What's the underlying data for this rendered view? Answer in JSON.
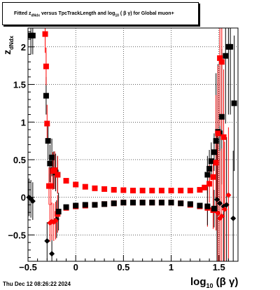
{
  "title": {
    "prefix": "Fitted  z",
    "sub1": "dNdx",
    "middle": " versus TpcTrackLength and log",
    "sub2": "10",
    "suffix": " ( β γ) for Global muon+"
  },
  "footer_date": "Thu Dec 12 08:26:22 2024",
  "xlabel": {
    "base": "log",
    "sub": "10",
    "tail": " (β γ)"
  },
  "ylabel": {
    "base": "z",
    "sub": "dNdx"
  },
  "chart_data": {
    "type": "scatter",
    "xlim": [
      -0.5,
      1.7
    ],
    "ylim": [
      -0.85,
      2.25
    ],
    "grid": true,
    "x_ticks": [
      {
        "v": -0.5,
        "label": "−0.5"
      },
      {
        "v": 0,
        "label": "0"
      },
      {
        "v": 0.5,
        "label": "0.5"
      },
      {
        "v": 1,
        "label": "1"
      },
      {
        "v": 1.5,
        "label": "1.5"
      }
    ],
    "y_ticks": [
      {
        "v": -0.5,
        "label": "−0.5"
      },
      {
        "v": 0,
        "label": "0"
      },
      {
        "v": 0.5,
        "label": "0.5"
      },
      {
        "v": 1,
        "label": "1"
      },
      {
        "v": 1.5,
        "label": "1.5"
      },
      {
        "v": 2,
        "label": "2"
      }
    ],
    "series": [
      {
        "color": "#000000",
        "marker": "square",
        "points": [
          [
            -0.47,
            2.15
          ],
          [
            -0.45,
            2.15
          ],
          [
            -0.31,
            1.35
          ],
          [
            -0.29,
            0.75
          ],
          [
            -0.27,
            0.45
          ],
          [
            -0.25,
            0.53
          ],
          [
            -0.23,
            0.36
          ],
          [
            -0.21,
            0.33
          ],
          [
            -0.19,
            0.3
          ],
          [
            1.38,
            0.3
          ],
          [
            1.4,
            0.38
          ],
          [
            1.42,
            0.48
          ],
          [
            1.45,
            0.6
          ],
          [
            1.47,
            0.75
          ],
          [
            1.49,
            0.87
          ],
          [
            1.51,
            0.85
          ],
          [
            1.53,
            1.07
          ],
          [
            1.57,
            1.88
          ],
          [
            1.6,
            2.0
          ],
          [
            1.62,
            2.0
          ],
          [
            1.66,
            1.25
          ]
        ]
      },
      {
        "color": "#000000",
        "marker": "diamond",
        "points": [
          [
            -0.49,
            0.0
          ],
          [
            -0.47,
            -0.02
          ],
          [
            -0.45,
            -0.05
          ],
          [
            -0.3,
            -0.58
          ],
          [
            -0.25,
            -0.75
          ],
          [
            -0.2,
            -0.29
          ],
          [
            1.48,
            -0.03
          ],
          [
            1.51,
            -0.08
          ],
          [
            1.55,
            -0.12
          ],
          [
            1.58,
            -0.1
          ],
          [
            1.65,
            -0.28
          ]
        ]
      },
      {
        "color": "#ff0000",
        "marker": "square",
        "points": [
          [
            -0.32,
            2.17
          ],
          [
            -0.31,
            1.74
          ],
          [
            -0.3,
            0.98
          ],
          [
            -0.28,
            0.15
          ],
          [
            -0.26,
            0.15
          ],
          [
            -0.24,
            0.35
          ],
          [
            -0.22,
            0.36
          ],
          [
            1.47,
            0.46
          ],
          [
            1.49,
            0.85
          ],
          [
            1.51,
            1.85
          ],
          [
            1.53,
            1.8
          ],
          [
            1.55,
            0.8
          ]
        ]
      },
      {
        "color": "#ff0000",
        "marker": "diamond",
        "points": [
          [
            -0.27,
            -0.34
          ],
          [
            -0.25,
            -0.32
          ],
          [
            -0.23,
            -0.33
          ],
          [
            -0.21,
            -0.31
          ],
          [
            1.49,
            -0.21
          ],
          [
            1.51,
            -0.28
          ],
          [
            1.53,
            -0.25
          ],
          [
            1.56,
            -0.16
          ],
          [
            1.6,
            0.03
          ]
        ]
      },
      {
        "color": "#ff0000",
        "marker": "square",
        "points": [
          [
            -0.19,
            0.3
          ],
          [
            -0.1,
            0.22
          ],
          [
            0.0,
            0.17
          ],
          [
            0.1,
            0.14
          ],
          [
            0.2,
            0.12
          ],
          [
            0.3,
            0.11
          ],
          [
            0.4,
            0.1
          ],
          [
            0.5,
            0.095
          ],
          [
            0.6,
            0.09
          ],
          [
            0.7,
            0.09
          ],
          [
            0.8,
            0.09
          ],
          [
            0.9,
            0.09
          ],
          [
            1.0,
            0.09
          ],
          [
            1.1,
            0.09
          ],
          [
            1.2,
            0.09
          ],
          [
            1.3,
            0.1
          ],
          [
            1.35,
            0.13
          ],
          [
            1.4,
            0.18
          ],
          [
            1.44,
            0.27
          ]
        ]
      },
      {
        "color": "#ff0000",
        "marker": "square",
        "points": [
          [
            -0.19,
            -0.22
          ],
          [
            -0.1,
            -0.14
          ],
          [
            0.0,
            -0.12
          ],
          [
            0.1,
            -0.11
          ],
          [
            0.2,
            -0.1
          ],
          [
            0.3,
            -0.09
          ],
          [
            0.4,
            -0.08
          ],
          [
            0.5,
            -0.07
          ],
          [
            0.6,
            -0.07
          ],
          [
            0.7,
            -0.07
          ],
          [
            0.8,
            -0.07
          ],
          [
            0.9,
            -0.07
          ],
          [
            1.0,
            -0.07
          ],
          [
            1.1,
            -0.08
          ],
          [
            1.2,
            -0.1
          ],
          [
            1.3,
            -0.12
          ],
          [
            1.38,
            -0.14
          ],
          [
            1.44,
            -0.17
          ]
        ]
      },
      {
        "color": "#000000",
        "marker": "square",
        "points": [
          [
            -0.18,
            -0.19
          ],
          [
            -0.1,
            -0.13
          ],
          [
            0.0,
            -0.11
          ],
          [
            0.1,
            -0.1
          ],
          [
            0.2,
            -0.1
          ],
          [
            0.3,
            -0.09
          ],
          [
            0.4,
            -0.08
          ],
          [
            0.5,
            -0.07
          ],
          [
            0.6,
            -0.07
          ],
          [
            0.7,
            -0.07
          ],
          [
            0.8,
            -0.07
          ],
          [
            0.9,
            -0.07
          ],
          [
            1.0,
            -0.07
          ],
          [
            1.1,
            -0.08
          ],
          [
            1.2,
            -0.09
          ],
          [
            1.3,
            -0.11
          ],
          [
            1.38,
            -0.12
          ],
          [
            1.45,
            -0.15
          ]
        ]
      }
    ]
  }
}
